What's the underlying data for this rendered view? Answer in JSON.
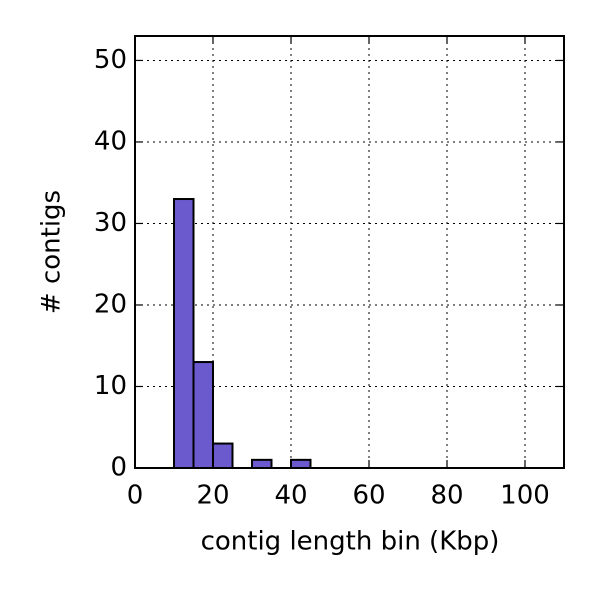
{
  "chart_data": {
    "type": "histogram",
    "xlabel": "contig length bin (Kbp)",
    "ylabel": "# contigs",
    "bins": [
      0,
      5,
      10,
      15,
      20,
      25,
      30,
      35,
      40,
      45,
      50,
      55,
      60,
      65,
      70,
      75,
      80,
      85,
      90,
      95,
      100,
      105,
      110
    ],
    "values": [
      0,
      0,
      33,
      13,
      3,
      0,
      1,
      0,
      1,
      0,
      0,
      0,
      0,
      0,
      0,
      0,
      0,
      0,
      0,
      0,
      0,
      0
    ],
    "color": "#6a5acd",
    "xlim": [
      0,
      110
    ],
    "ylim": [
      0,
      53
    ],
    "xticks": [
      0,
      20,
      40,
      60,
      80,
      100
    ],
    "yticks": [
      0,
      10,
      20,
      30,
      40,
      50
    ],
    "grid": true
  }
}
